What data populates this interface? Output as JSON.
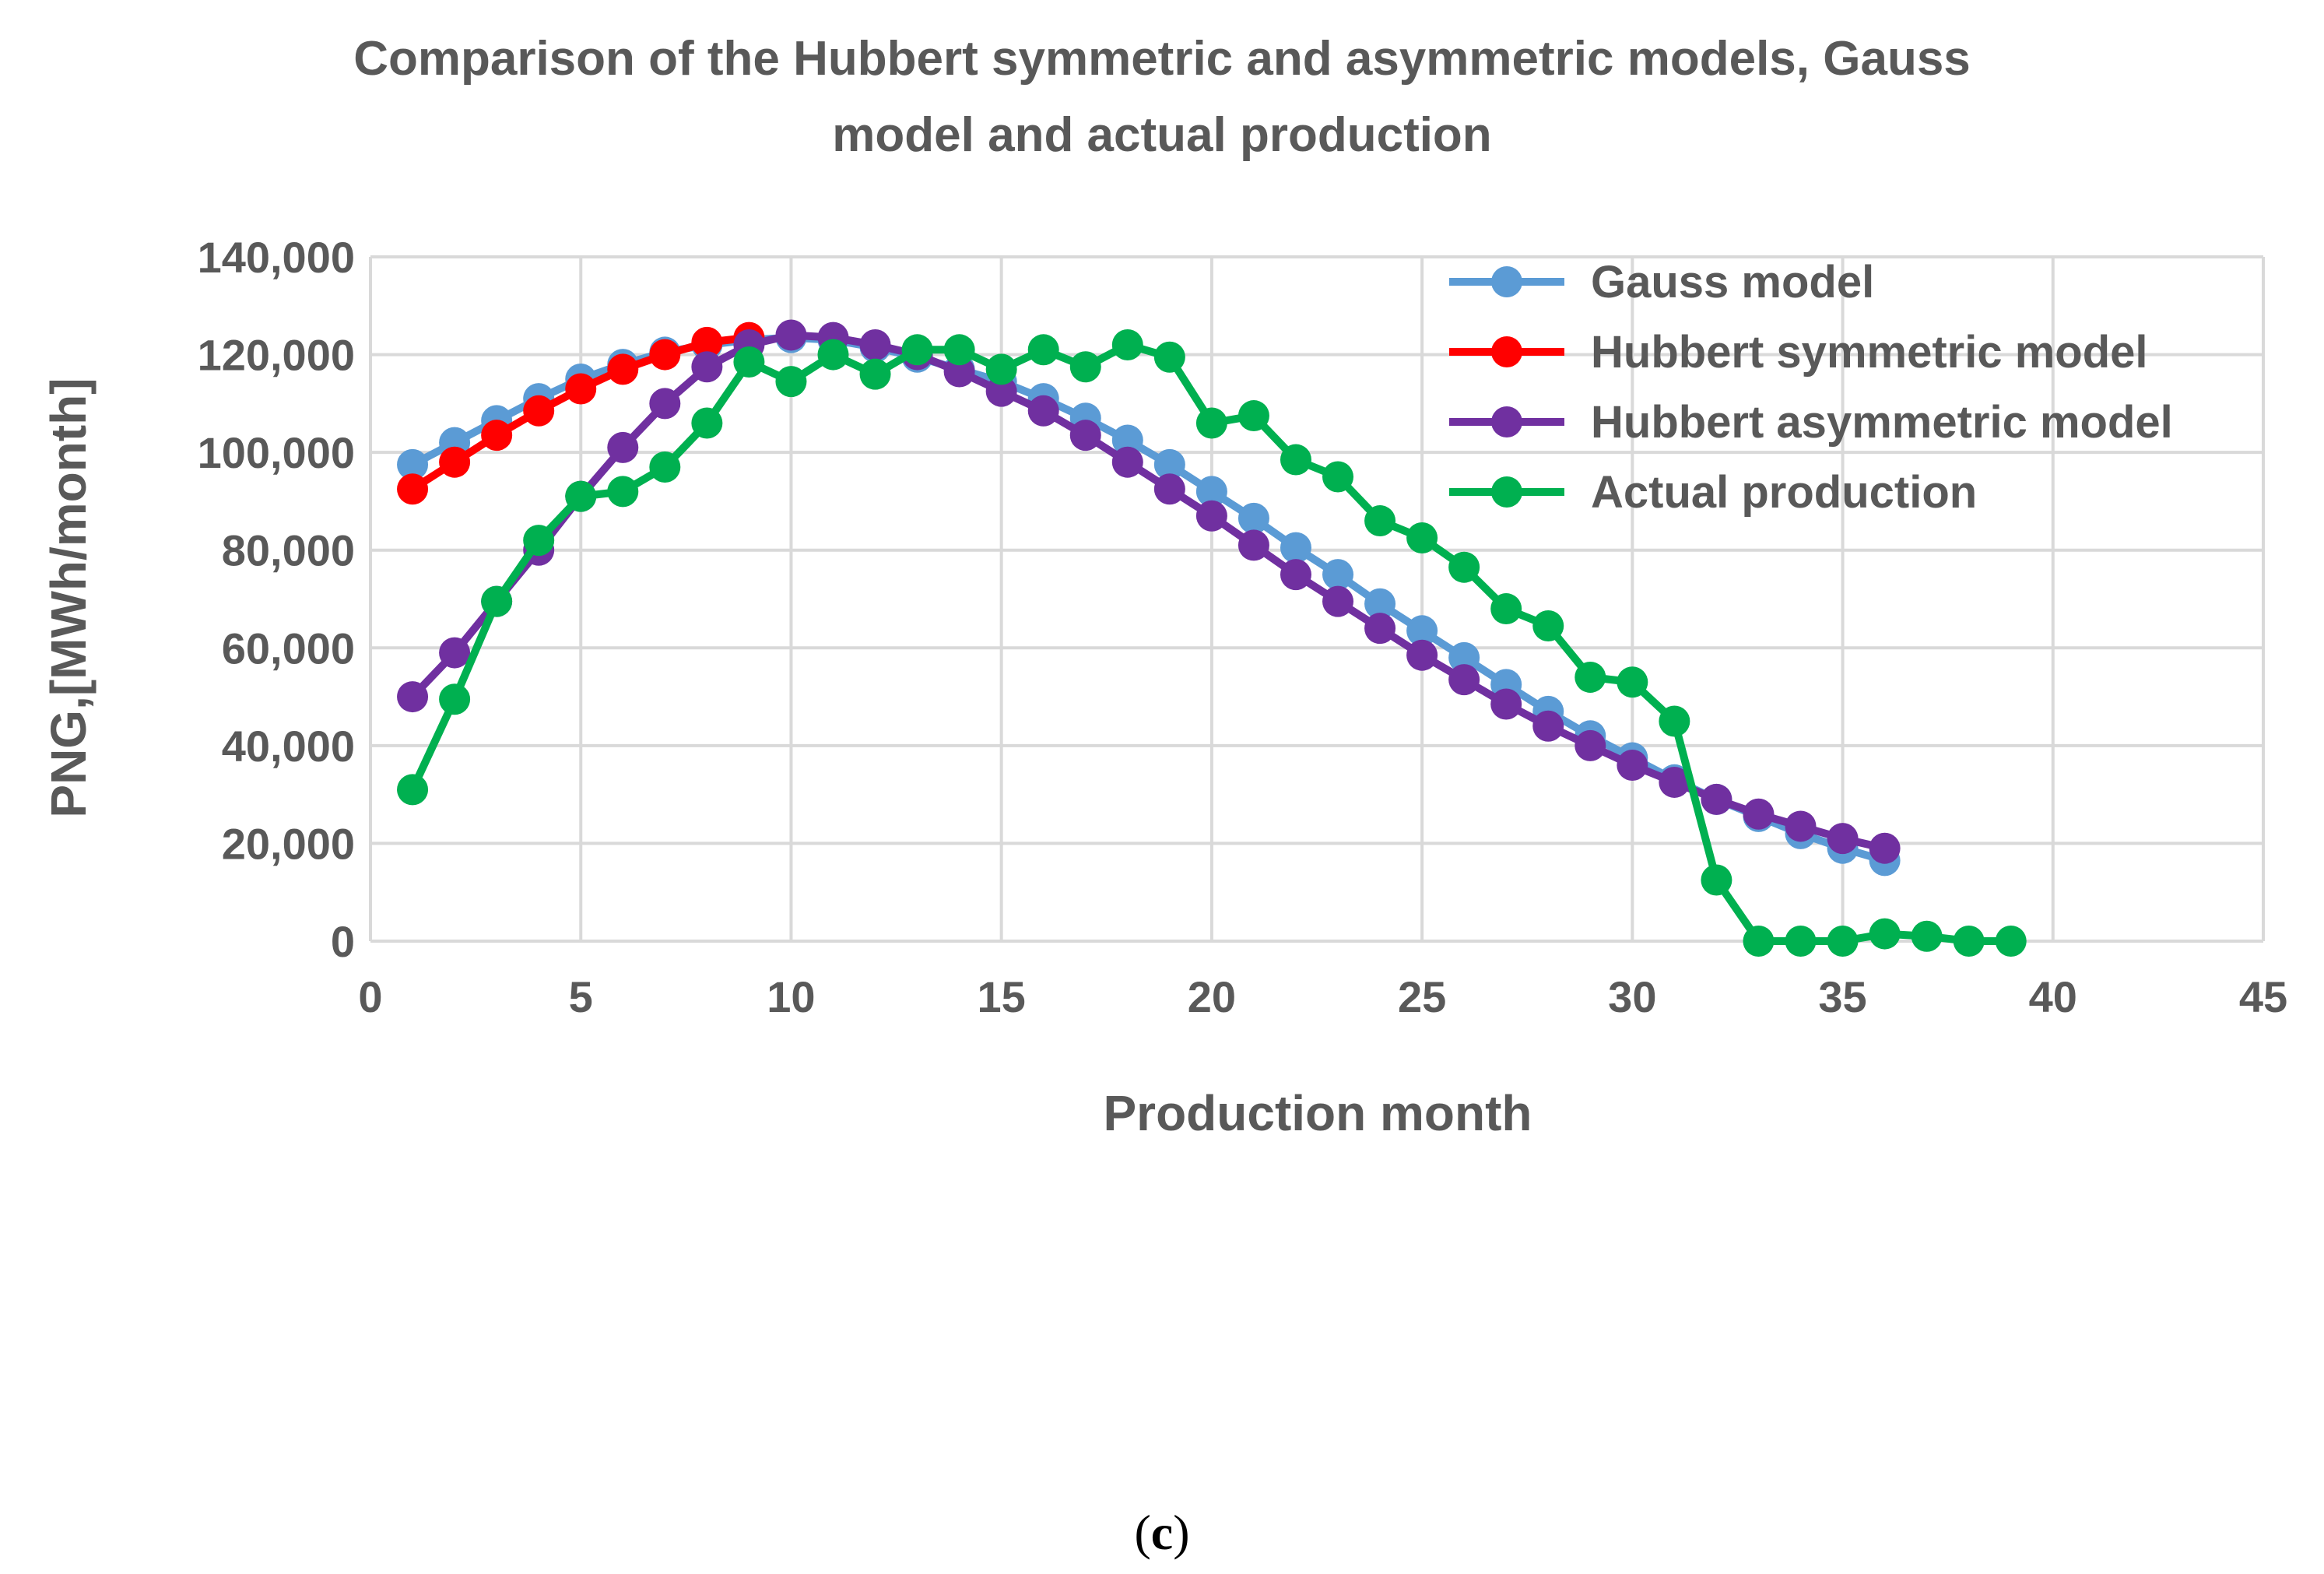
{
  "chart_data": {
    "type": "line",
    "title_lines": [
      "Comparison of the Hubbert symmetric and asymmetric models, Gauss",
      "model and actual production"
    ],
    "xlabel": "Production month",
    "ylabel": "PNG,[MWh/month]",
    "xlim": [
      0,
      45
    ],
    "ylim": [
      0,
      140000
    ],
    "xticks": [
      0,
      5,
      10,
      15,
      20,
      25,
      30,
      35,
      40,
      45
    ],
    "xtick_labels": [
      "0",
      "5",
      "10",
      "15",
      "20",
      "25",
      "30",
      "35",
      "40",
      "45"
    ],
    "yticks": [
      0,
      20000,
      40000,
      60000,
      80000,
      100000,
      120000,
      140000
    ],
    "ytick_labels": [
      "0",
      "20,000",
      "40,000",
      "60,000",
      "80,000",
      "100,000",
      "120,000",
      "140,000"
    ],
    "grid": true,
    "legend_position": "top-right",
    "series": [
      {
        "name": "Gauss model",
        "color": "#5B9BD5",
        "x": [
          1,
          2,
          3,
          4,
          5,
          6,
          7,
          8,
          9,
          10,
          11,
          12,
          13,
          14,
          15,
          16,
          17,
          18,
          19,
          20,
          21,
          22,
          23,
          24,
          25,
          26,
          27,
          28,
          29,
          30,
          31,
          32,
          33,
          34,
          35,
          36
        ],
        "y": [
          97500,
          102000,
          106500,
          111000,
          115000,
          118000,
          120500,
          122000,
          123000,
          123500,
          123000,
          121500,
          119500,
          117000,
          114500,
          111000,
          107000,
          102500,
          97500,
          92000,
          86500,
          80500,
          75000,
          69000,
          63500,
          58000,
          52500,
          47000,
          42000,
          37500,
          33000,
          29000,
          25500,
          22000,
          19000,
          16500
        ]
      },
      {
        "name": "Hubbert symmetric model",
        "color": "#FF0000",
        "x": [
          1,
          2,
          3,
          4,
          5,
          6,
          7,
          8,
          9
        ],
        "y": [
          92500,
          98000,
          103500,
          108500,
          113000,
          117000,
          120000,
          122500,
          123500
        ]
      },
      {
        "name": "Hubbert asymmetric model",
        "color": "#7030A0",
        "x": [
          1,
          2,
          3,
          4,
          5,
          6,
          7,
          8,
          9,
          10,
          11,
          12,
          13,
          14,
          15,
          16,
          17,
          18,
          19,
          20,
          21,
          22,
          23,
          24,
          25,
          26,
          27,
          28,
          29,
          30,
          31,
          32,
          33,
          34,
          35,
          36
        ],
        "y": [
          50000,
          59000,
          69500,
          80000,
          91000,
          101000,
          110000,
          117500,
          122000,
          124000,
          123500,
          122000,
          120000,
          116500,
          112500,
          108500,
          103500,
          98000,
          92500,
          87000,
          81000,
          75000,
          69500,
          64000,
          58500,
          53500,
          48500,
          44000,
          40000,
          36000,
          32500,
          29000,
          26000,
          23500,
          21000,
          19000
        ]
      },
      {
        "name": "Actual production",
        "color": "#00B050",
        "x": [
          1,
          2,
          3,
          4,
          5,
          6,
          7,
          8,
          9,
          10,
          11,
          12,
          13,
          14,
          15,
          16,
          17,
          18,
          19,
          20,
          21,
          22,
          23,
          24,
          25,
          26,
          27,
          28,
          29,
          30,
          31,
          32,
          33,
          34,
          35,
          36,
          37,
          38,
          39
        ],
        "y": [
          31000,
          49500,
          69500,
          82000,
          91000,
          92000,
          97000,
          106000,
          118500,
          114500,
          120000,
          116000,
          121000,
          121000,
          117000,
          121000,
          117500,
          122000,
          119500,
          106000,
          107500,
          98500,
          95000,
          86000,
          82500,
          76500,
          68000,
          64500,
          54000,
          53000,
          45000,
          12500,
          0,
          0,
          0,
          1500,
          1000,
          0,
          0
        ]
      }
    ]
  },
  "caption": {
    "open": "(",
    "letter": "c",
    "close": ")"
  }
}
